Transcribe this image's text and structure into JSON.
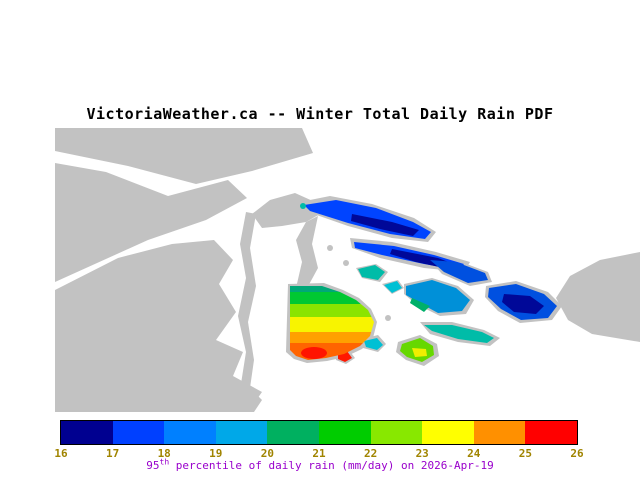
{
  "title": "VictoriaWeather.ca -- Winter Total Daily Rain PDF",
  "map": {
    "land_color": "#c2c2c2",
    "water_color": "#ffffff",
    "regions": {
      "victoria_bands": {
        "teal": "#00a878",
        "green": "#00c832",
        "chartreuse": "#8ae400",
        "yellow": "#f8f400",
        "orange": "#ffa000",
        "deep_orange": "#ff6400",
        "red": "#ff1400"
      },
      "islands": {
        "blue": "#0044ff",
        "navy": "#000898",
        "royal": "#0050e0",
        "light_blue": "#0090d8",
        "cyan": "#00c0d4",
        "teal": "#00bca8",
        "sea_green": "#00b06a",
        "chartreuse": "#66d800",
        "yellow": "#f0ee00",
        "red": "#ff1800"
      }
    }
  },
  "colorbar": {
    "tick_labels": [
      "16",
      "17",
      "18",
      "19",
      "20",
      "21",
      "22",
      "23",
      "24",
      "25",
      "26"
    ],
    "tick_color": "#a08400",
    "segments": [
      "#000090",
      "#0040ff",
      "#0080ff",
      "#00a8e8",
      "#00b060",
      "#00cc00",
      "#88e800",
      "#ffff00",
      "#ff9000",
      "#ff0000"
    ]
  },
  "caption": {
    "number": "95",
    "superscript": "th",
    "text": " percentile of daily rain (mm/day) on 2026-Apr-19",
    "color": "#9900cc"
  }
}
